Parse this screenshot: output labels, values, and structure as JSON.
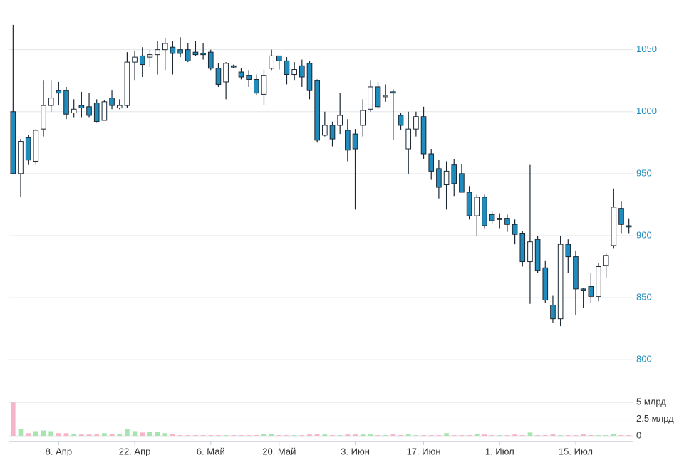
{
  "chart_data": {
    "type": "candlestick",
    "categories": [
      null,
      null,
      null,
      null,
      null,
      null,
      "8. Апр",
      null,
      null,
      null,
      null,
      null,
      null,
      null,
      null,
      null,
      "22. Апр",
      null,
      null,
      null,
      null,
      null,
      null,
      null,
      null,
      null,
      "6. Май",
      null,
      null,
      null,
      null,
      null,
      null,
      null,
      null,
      "20. Май",
      null,
      null,
      null,
      null,
      null,
      null,
      null,
      null,
      null,
      "3. Июн",
      null,
      null,
      null,
      null,
      null,
      null,
      null,
      null,
      "17. Июн",
      null,
      null,
      null,
      null,
      null,
      null,
      null,
      null,
      null,
      "1. Июл",
      null,
      null,
      null,
      null,
      null,
      null,
      null,
      null,
      null,
      "15. Июл",
      null,
      null,
      null,
      null,
      null,
      null,
      null
    ],
    "open": [
      1000,
      950,
      979,
      960,
      986,
      1005,
      1017,
      1017,
      999,
      1005,
      1004,
      1007,
      993,
      1011,
      1003,
      1005,
      1040,
      1045,
      1044,
      1046,
      1050,
      1052,
      1050,
      1050,
      1048,
      1047,
      1048,
      1035,
      1024,
      1037,
      1032,
      1029,
      1026,
      1014,
      1035,
      1045,
      1041,
      1030,
      1037,
      1039,
      1025,
      981,
      989,
      989,
      985,
      982,
      989,
      1002,
      1020,
      1012,
      1016,
      997,
      970,
      986,
      996,
      966,
      954,
      941,
      957,
      950,
      935,
      916,
      931,
      917,
      913,
      914,
      909,
      902,
      879,
      897,
      874,
      844,
      833,
      893,
      883,
      857,
      859,
      851,
      876,
      892,
      922,
      908
    ],
    "high": [
      1070,
      978,
      981,
      986,
      1025,
      1025,
      1024,
      1020,
      1010,
      1016,
      1015,
      1010,
      1009,
      1017,
      1010,
      1048,
      1049,
      1052,
      1050,
      1057,
      1059,
      1057,
      1060,
      1055,
      1057,
      1055,
      1050,
      1039,
      1040,
      1038,
      1035,
      1033,
      1030,
      1034,
      1050,
      1045,
      1044,
      1040,
      1042,
      1041,
      1026,
      1000,
      992,
      1015,
      994,
      986,
      1010,
      1025,
      1024,
      1022,
      1018,
      999,
      1000,
      1000,
      1004,
      970,
      961,
      960,
      962,
      958,
      940,
      933,
      933,
      920,
      918,
      917,
      913,
      904,
      957,
      900,
      880,
      852,
      900,
      897,
      888,
      858,
      870,
      878,
      886,
      938,
      928,
      914
    ],
    "low": [
      950,
      931,
      957,
      957,
      980,
      1000,
      1005,
      994,
      995,
      995,
      995,
      991,
      993,
      1002,
      1002,
      1003,
      1025,
      1028,
      1036,
      1030,
      1033,
      1030,
      1044,
      1040,
      1045,
      1042,
      1033,
      1020,
      1010,
      1035,
      1026,
      1020,
      1013,
      1005,
      1033,
      1034,
      1022,
      1025,
      1020,
      1010,
      975,
      980,
      972,
      982,
      960,
      921,
      980,
      1000,
      1002,
      1008,
      977,
      985,
      950,
      980,
      962,
      945,
      930,
      921,
      932,
      935,
      913,
      900,
      906,
      909,
      906,
      903,
      893,
      875,
      845,
      870,
      846,
      830,
      827,
      870,
      836,
      842,
      846,
      847,
      866,
      890,
      902,
      902
    ],
    "close": [
      950,
      976,
      961,
      985,
      1005,
      1011,
      1015,
      998,
      1002,
      1003,
      997,
      992,
      1008,
      1005,
      1005,
      1040,
      1044,
      1038,
      1046,
      1050,
      1055,
      1047,
      1047,
      1041,
      1046,
      1046,
      1035,
      1022,
      1039,
      1036,
      1028,
      1026,
      1015,
      1029,
      1045,
      1041,
      1030,
      1034,
      1028,
      1017,
      977,
      989,
      978,
      997,
      969,
      970,
      1001,
      1020,
      1004,
      1013,
      1015,
      989,
      986,
      996,
      966,
      952,
      939,
      952,
      942,
      935,
      916,
      931,
      908,
      912,
      914,
      909,
      901,
      879,
      895,
      872,
      848,
      833,
      893,
      883,
      857,
      856,
      851,
      875,
      884,
      923,
      909,
      907
    ],
    "ylim": [
      780,
      1090
    ],
    "yticks": [
      800,
      850,
      900,
      950,
      1000,
      1050
    ],
    "up_color": "#ffffff",
    "down_color": "#1f8cbd",
    "grid": true,
    "volume": {
      "values": [
        5.0,
        1.0,
        0.4,
        0.7,
        0.8,
        0.7,
        0.4,
        0.4,
        0.3,
        0.2,
        0.2,
        0.2,
        0.4,
        0.3,
        0.3,
        1.0,
        0.7,
        0.5,
        0.6,
        0.6,
        0.4,
        0.3,
        0.1,
        0.1,
        0.1,
        0.1,
        0.1,
        0.1,
        0.1,
        0.1,
        0.1,
        0.1,
        0.1,
        0.3,
        0.3,
        0.1,
        0.1,
        0.1,
        0.1,
        0.2,
        0.3,
        0.2,
        0.1,
        0.1,
        0.2,
        0.2,
        0.2,
        0.2,
        0.1,
        0.1,
        0.2,
        0.1,
        0.2,
        0.1,
        0.1,
        0.1,
        0.1,
        0.4,
        0.1,
        0.1,
        0.1,
        0.3,
        0.2,
        0.1,
        0.1,
        0.1,
        0.2,
        0.1,
        0.5,
        0.1,
        0.1,
        0.2,
        0.1,
        0.1,
        0.1,
        0.2,
        0.1,
        0.1,
        0.1,
        0.3,
        0.1,
        0.1
      ],
      "ylim": [
        0,
        7.6
      ],
      "yticks": [
        0,
        {
          "value": 2.5,
          "label": "2.5 млрд"
        },
        {
          "value": 5,
          "label": "5 млрд"
        }
      ],
      "up_color": "#a8e4b0",
      "down_color": "#f7b3c8"
    }
  }
}
